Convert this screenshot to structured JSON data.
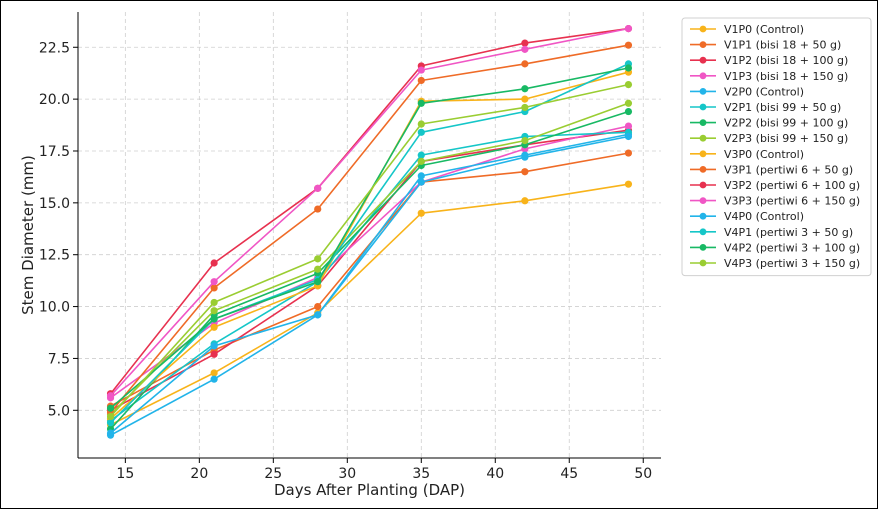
{
  "chart_data": {
    "type": "line",
    "title": "",
    "xlabel": "Days After Planting (DAP)",
    "ylabel": "Stem Diameter (mm)",
    "x": [
      14,
      21,
      28,
      35,
      42,
      49
    ],
    "xlim": [
      11.8,
      51.2
    ],
    "ylim": [
      2.7,
      24.2
    ],
    "xticks": [
      15,
      20,
      25,
      30,
      35,
      40,
      45,
      50
    ],
    "yticks": [
      5.0,
      7.5,
      10.0,
      12.5,
      15.0,
      17.5,
      20.0,
      22.5
    ],
    "xtick_labels": [
      "15",
      "20",
      "25",
      "30",
      "35",
      "40",
      "45",
      "50"
    ],
    "ytick_labels": [
      "5.0",
      "7.5",
      "10.0",
      "12.5",
      "15.0",
      "17.5",
      "20.0",
      "22.5"
    ],
    "grid": true,
    "legend_position": "outside-right",
    "series": [
      {
        "name": "V1P0 (Control)",
        "color": "#f8b31a",
        "values": [
          4.3,
          6.8,
          9.7,
          14.5,
          15.1,
          15.9
        ]
      },
      {
        "name": "V1P1 (bisi 18 + 50 g)",
        "color": "#ef6b27",
        "values": [
          5.2,
          7.9,
          10.0,
          16.0,
          16.5,
          17.4
        ]
      },
      {
        "name": "V1P2 (bisi 18 + 100 g)",
        "color": "#e7314f",
        "values": [
          5.0,
          7.7,
          11.0,
          17.0,
          17.8,
          18.5
        ]
      },
      {
        "name": "V1P3 (bisi 18 + 150 g)",
        "color": "#f056c5",
        "values": [
          5.6,
          9.2,
          11.4,
          16.0,
          17.6,
          18.7
        ]
      },
      {
        "name": "V2P0 (Control)",
        "color": "#22b4e9",
        "values": [
          3.8,
          6.5,
          9.6,
          16.3,
          17.3,
          18.3
        ]
      },
      {
        "name": "V2P1 (bisi 99 + 50 g)",
        "color": "#15c6c8",
        "values": [
          4.5,
          8.2,
          11.2,
          17.3,
          18.2,
          18.4
        ]
      },
      {
        "name": "V2P2 (bisi 99 + 100 g)",
        "color": "#18b964",
        "values": [
          4.1,
          9.6,
          11.6,
          16.8,
          17.8,
          19.4
        ]
      },
      {
        "name": "V2P3 (bisi 99 + 150 g)",
        "color": "#9acd32",
        "values": [
          4.8,
          9.8,
          11.8,
          17.0,
          18.0,
          19.8
        ]
      },
      {
        "name": "V3P0 (Control)",
        "color": "#f8b31a",
        "values": [
          4.6,
          9.0,
          11.0,
          19.9,
          20.0,
          21.3
        ]
      },
      {
        "name": "V3P1 (pertiwi 6 + 50 g)",
        "color": "#ef6b27",
        "values": [
          4.9,
          10.9,
          14.7,
          20.9,
          21.7,
          22.6
        ]
      },
      {
        "name": "V3P2 (pertiwi 6 + 100 g)",
        "color": "#e7314f",
        "values": [
          5.8,
          12.1,
          15.7,
          21.6,
          22.7,
          23.4
        ]
      },
      {
        "name": "V3P3 (pertiwi 6 + 150 g)",
        "color": "#f056c5",
        "values": [
          5.7,
          11.2,
          15.7,
          21.4,
          22.4,
          23.4
        ]
      },
      {
        "name": "V4P0 (Control)",
        "color": "#22b4e9",
        "values": [
          3.9,
          8.1,
          9.6,
          16.0,
          17.2,
          18.2
        ]
      },
      {
        "name": "V4P1 (pertiwi 3 + 50 g)",
        "color": "#15c6c8",
        "values": [
          4.4,
          9.4,
          11.3,
          18.4,
          19.4,
          21.7
        ]
      },
      {
        "name": "V4P2 (pertiwi 3 + 100 g)",
        "color": "#18b964",
        "values": [
          5.1,
          9.4,
          11.2,
          19.8,
          20.5,
          21.5
        ]
      },
      {
        "name": "V4P3 (pertiwi 3 + 150 g)",
        "color": "#9acd32",
        "values": [
          4.7,
          10.2,
          12.3,
          18.8,
          19.6,
          20.7
        ]
      }
    ]
  }
}
